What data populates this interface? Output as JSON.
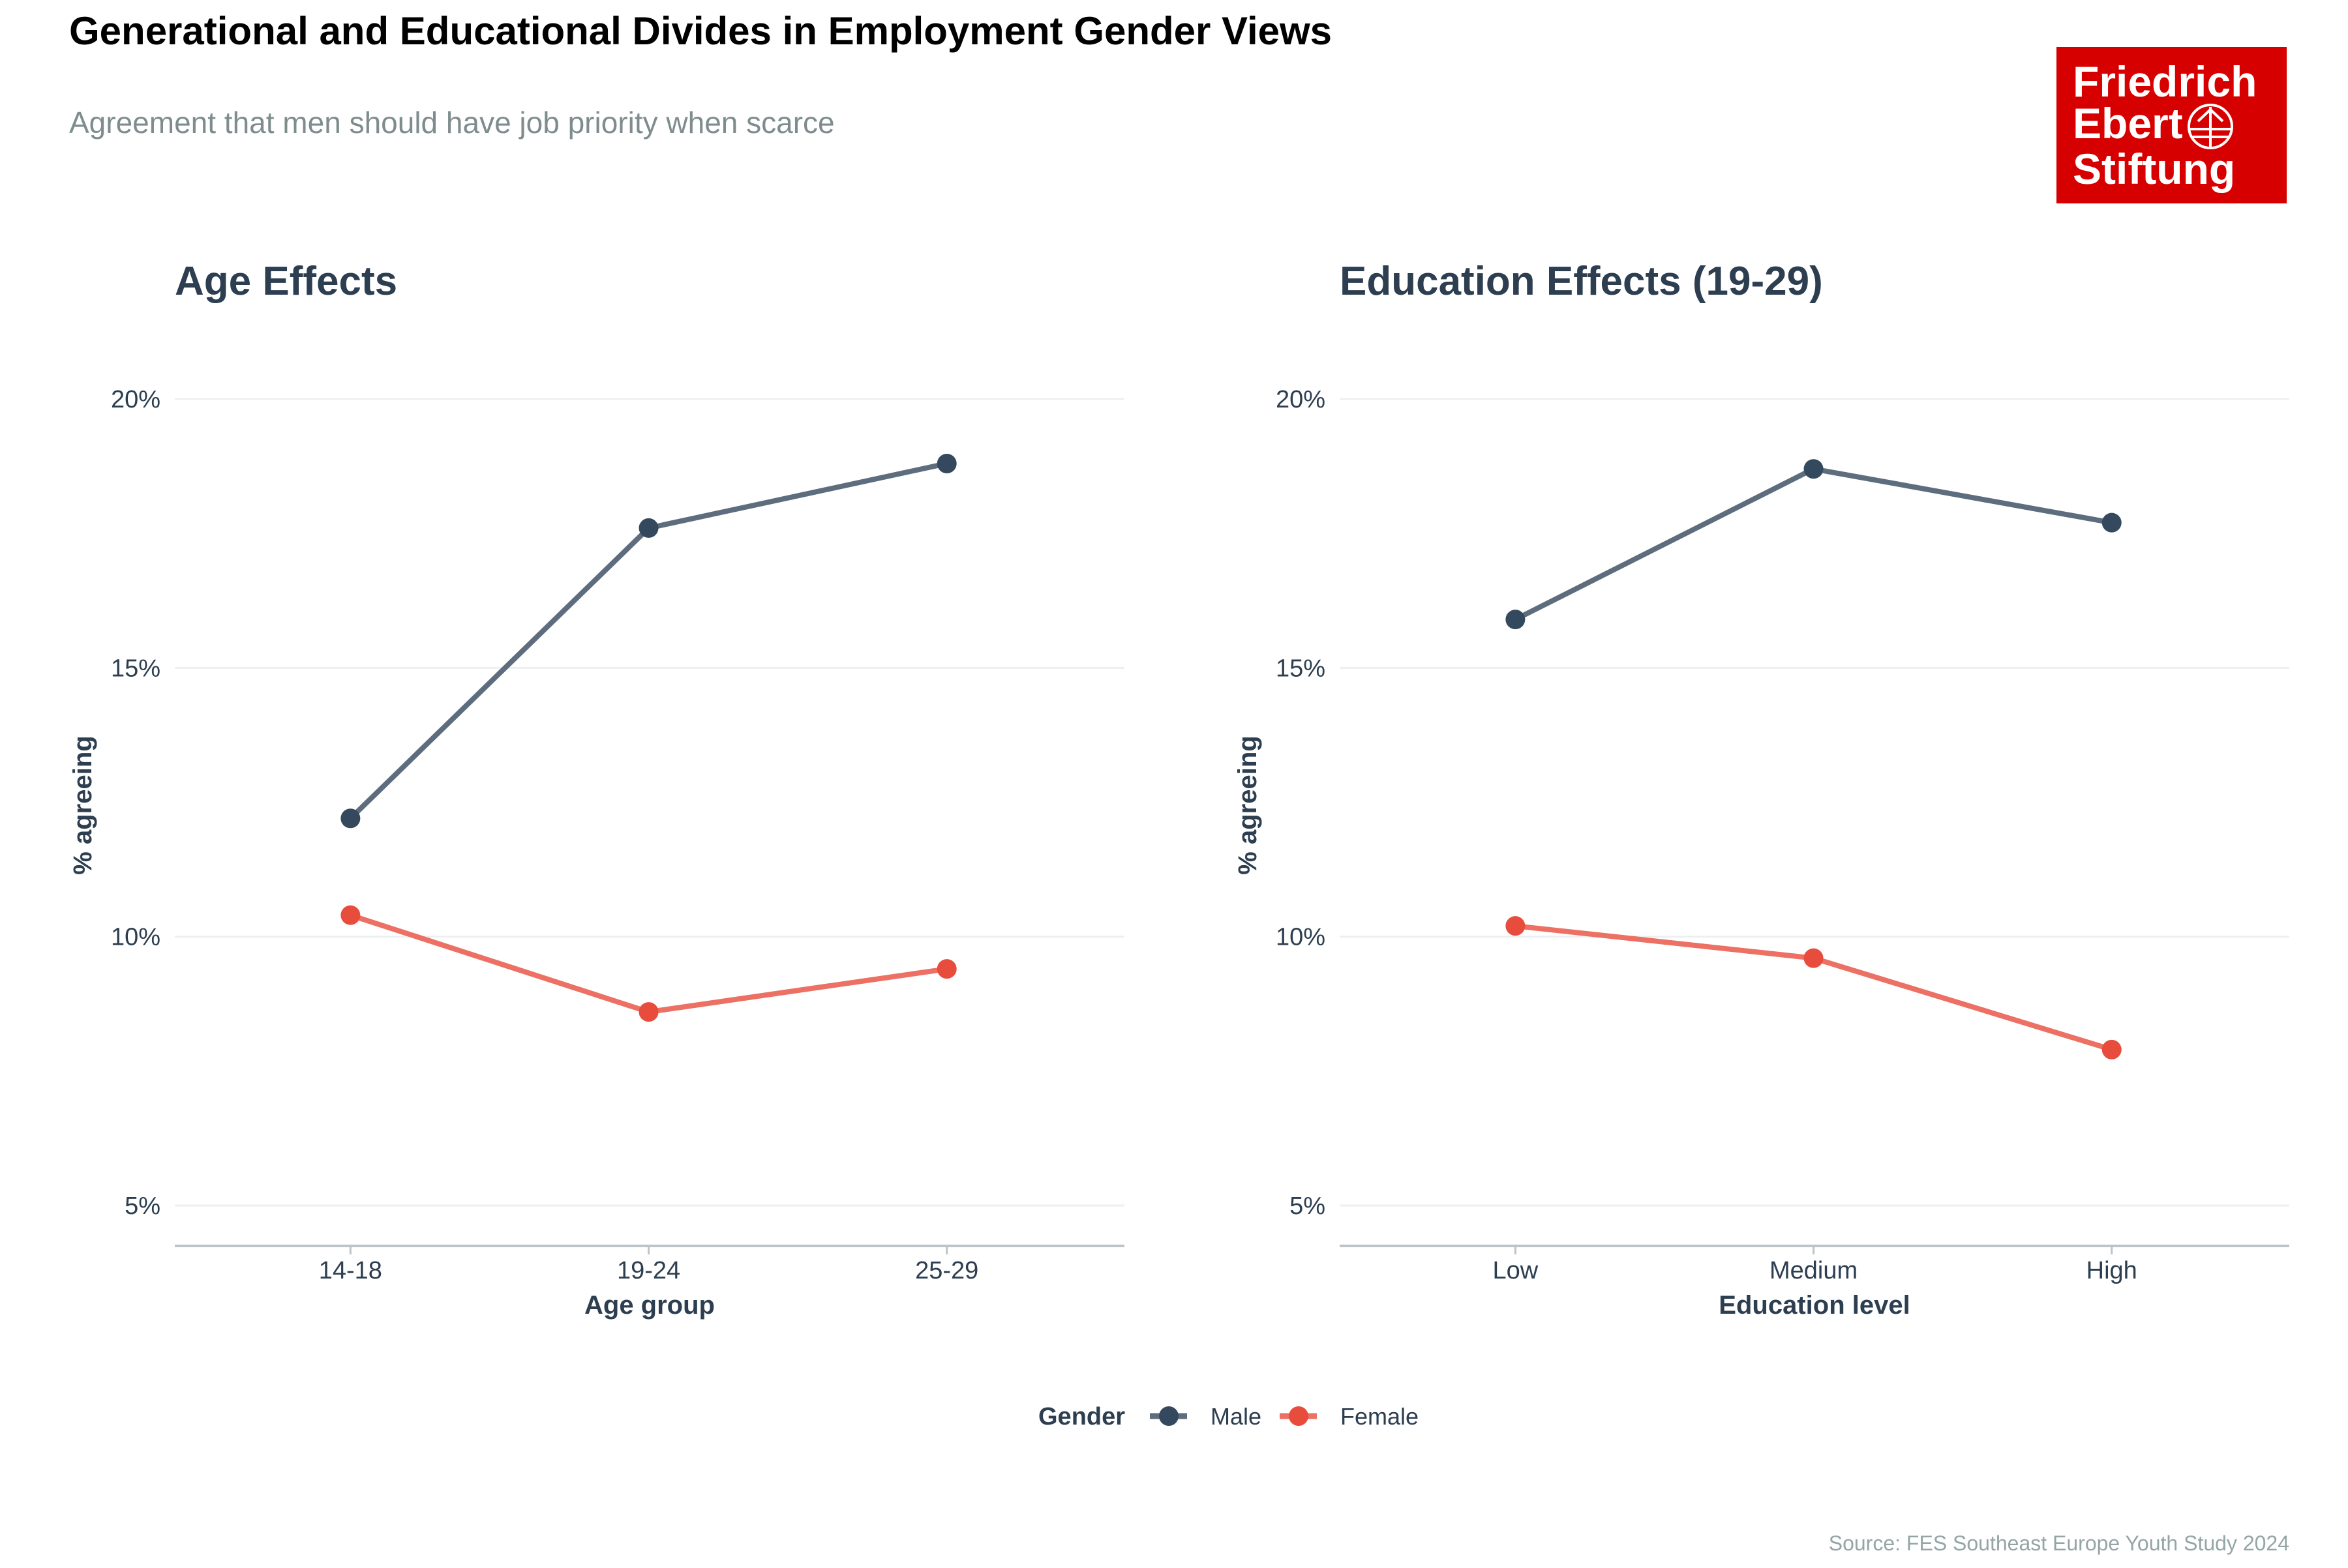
{
  "title": "Generational and Educational Divides in Employment Gender Views",
  "subtitle": "Agreement that men should have job priority when scarce",
  "logo_text": "Friedrich Ebert Stiftung",
  "source": "Source: FES Southeast Europe Youth Study 2024",
  "legend": {
    "title": "Gender",
    "items": [
      {
        "label": "Male",
        "line_color": "#5d6d7e",
        "point_color": "#34495e"
      },
      {
        "label": "Female",
        "line_color": "#ec7063",
        "point_color": "#e74c3c"
      }
    ],
    "placement": "bottom"
  },
  "chart_data": [
    {
      "type": "line",
      "title": "Age Effects",
      "xlabel": "Age group",
      "ylabel": "% agreeing",
      "categories": [
        "14-18",
        "19-24",
        "25-29"
      ],
      "yticks": [
        "5%",
        "10%",
        "15%",
        "20%"
      ],
      "ytick_values": [
        5,
        10,
        15,
        20
      ],
      "ylim": [
        4.2,
        20.8
      ],
      "grid": true,
      "series": [
        {
          "name": "Male",
          "values": [
            12.2,
            17.6,
            18.8
          ]
        },
        {
          "name": "Female",
          "values": [
            10.4,
            8.6,
            9.4
          ]
        }
      ]
    },
    {
      "type": "line",
      "title": "Education Effects (19-29)",
      "xlabel": "Education level",
      "ylabel": "% agreeing",
      "categories": [
        "Low",
        "Medium",
        "High"
      ],
      "yticks": [
        "5%",
        "10%",
        "15%",
        "20%"
      ],
      "ytick_values": [
        5,
        10,
        15,
        20
      ],
      "ylim": [
        4.2,
        20.8
      ],
      "grid": true,
      "series": [
        {
          "name": "Male",
          "values": [
            15.9,
            18.7,
            17.7
          ]
        },
        {
          "name": "Female",
          "values": [
            10.2,
            9.6,
            7.9
          ]
        }
      ]
    }
  ]
}
